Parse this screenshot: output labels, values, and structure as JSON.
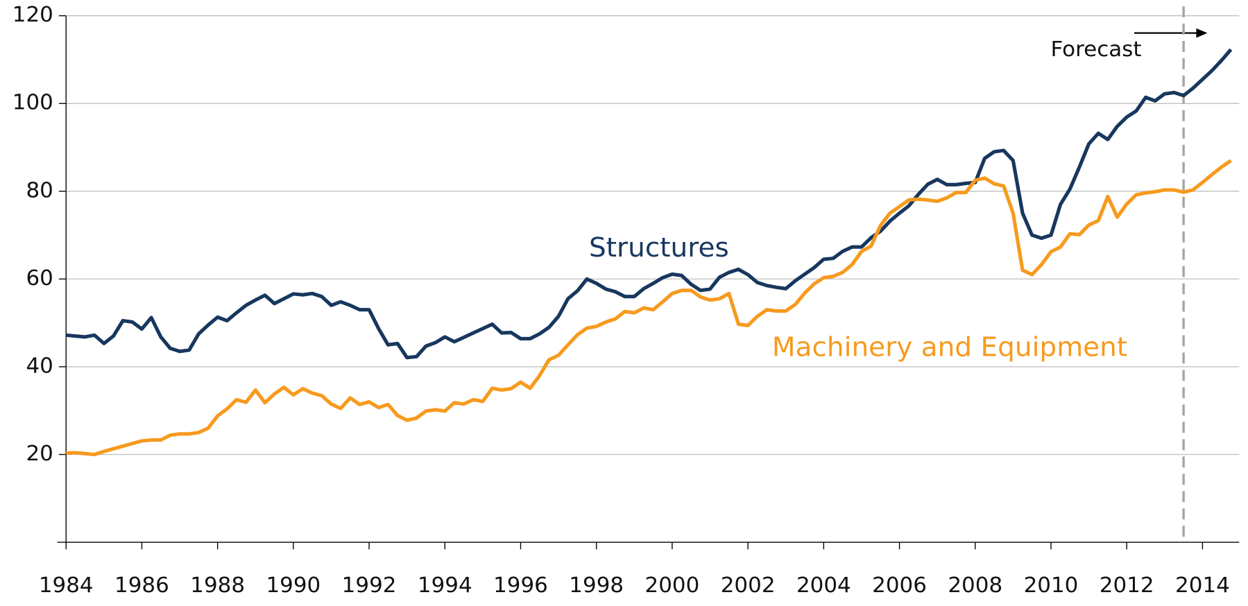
{
  "chart_data": {
    "type": "line",
    "annotations": [
      "Structures",
      "Machinery and Equipment",
      "Forecast"
    ],
    "x": [
      1984,
      1984.25,
      1984.5,
      1984.75,
      1985,
      1985.25,
      1985.5,
      1985.75,
      1986,
      1986.25,
      1986.5,
      1986.75,
      1987,
      1987.25,
      1987.5,
      1987.75,
      1988,
      1988.25,
      1988.5,
      1988.75,
      1989,
      1989.25,
      1989.5,
      1989.75,
      1990,
      1990.25,
      1990.5,
      1990.75,
      1991,
      1991.25,
      1991.5,
      1991.75,
      1992,
      1992.25,
      1992.5,
      1992.75,
      1993,
      1993.25,
      1993.5,
      1993.75,
      1994,
      1994.25,
      1994.5,
      1994.75,
      1995,
      1995.25,
      1995.5,
      1995.75,
      1996,
      1996.25,
      1996.5,
      1996.75,
      1997,
      1997.25,
      1997.5,
      1997.75,
      1998,
      1998.25,
      1998.5,
      1998.75,
      1999,
      1999.25,
      1999.5,
      1999.75,
      2000,
      2000.25,
      2000.5,
      2000.75,
      2001,
      2001.25,
      2001.5,
      2001.75,
      2002,
      2002.25,
      2002.5,
      2002.75,
      2003,
      2003.25,
      2003.5,
      2003.75,
      2004,
      2004.25,
      2004.5,
      2004.75,
      2005,
      2005.25,
      2005.5,
      2005.75,
      2006,
      2006.25,
      2006.5,
      2006.75,
      2007,
      2007.25,
      2007.5,
      2007.75,
      2008,
      2008.25,
      2008.5,
      2008.75,
      2009,
      2009.25,
      2009.5,
      2009.75,
      2010,
      2010.25,
      2010.5,
      2010.75,
      2011,
      2011.25,
      2011.5,
      2011.75,
      2012,
      2012.25,
      2012.5,
      2012.75,
      2013,
      2013.25,
      2013.5,
      2013.75,
      2014,
      2014.25,
      2014.5,
      2014.75
    ],
    "series": [
      {
        "name": "Structures",
        "color": "#17375e",
        "values": [
          47.2,
          47,
          46.8,
          47.2,
          45.3,
          47,
          50.5,
          50.2,
          48.6,
          51.2,
          46.8,
          44.2,
          43.5,
          43.8,
          47.5,
          49.5,
          51.3,
          50.5,
          52.3,
          54,
          55.2,
          56.3,
          54.4,
          55.5,
          56.6,
          56.4,
          56.7,
          56,
          54,
          54.8,
          54,
          53,
          53,
          48.7,
          45,
          45.3,
          42.1,
          42.3,
          44.7,
          45.5,
          46.8,
          45.7,
          46.7,
          47.7,
          48.7,
          49.7,
          47.7,
          47.8,
          46.4,
          46.4,
          47.5,
          49,
          51.5,
          55.5,
          57.3,
          60,
          59,
          57.7,
          57.1,
          56,
          56,
          57.8,
          59,
          60.3,
          61.1,
          60.8,
          58.8,
          57.4,
          57.7,
          60.4,
          61.5,
          62.2,
          61,
          59.2,
          58.5,
          58.1,
          57.8,
          59.6,
          61.1,
          62.6,
          64.5,
          64.7,
          66.3,
          67.3,
          67.3,
          69.4,
          70.9,
          73.2,
          75,
          76.7,
          79.3,
          81.6,
          82.7,
          81.5,
          81.5,
          81.8,
          82,
          87.5,
          89,
          89.3,
          87,
          75,
          70,
          69.3,
          70,
          77,
          80.5,
          85.5,
          90.8,
          93.2,
          91.8,
          94.8,
          96.9,
          98.3,
          101.4,
          100.6,
          102.2,
          102.5,
          101.8,
          103.5,
          105.5,
          107.5,
          109.8,
          112.3
        ]
      },
      {
        "name": "Machinery and Equipment",
        "color": "#f79a1e",
        "values": [
          20.3,
          20.4,
          20.2,
          20,
          20.7,
          21.3,
          21.9,
          22.5,
          23.1,
          23.3,
          23.3,
          24.4,
          24.7,
          24.7,
          25,
          26,
          28.8,
          30.4,
          32.5,
          31.9,
          34.7,
          31.8,
          33.8,
          35.3,
          33.6,
          35,
          34,
          33.4,
          31.5,
          30.5,
          32.9,
          31.4,
          32,
          30.7,
          31.4,
          28.9,
          27.8,
          28.3,
          29.9,
          30.2,
          29.9,
          31.8,
          31.5,
          32.5,
          32.1,
          35.1,
          34.7,
          35,
          36.5,
          35.1,
          38,
          41.6,
          42.6,
          45,
          47.3,
          48.8,
          49.2,
          50.2,
          50.9,
          52.6,
          52.3,
          53.4,
          53,
          54.8,
          56.7,
          57.4,
          57.4,
          55.9,
          55.2,
          55.5,
          56.7,
          49.7,
          49.4,
          51.5,
          53,
          52.7,
          52.7,
          54.2,
          56.8,
          58.9,
          60.3,
          60.6,
          61.5,
          63.3,
          66.3,
          67.5,
          72.2,
          75,
          76.5,
          78,
          78.2,
          78,
          77.7,
          78.5,
          79.7,
          79.7,
          82.5,
          83,
          81.7,
          81.2,
          75,
          62,
          61,
          63.3,
          66.2,
          67.3,
          70.3,
          70.1,
          72.3,
          73.3,
          78.8,
          74.1,
          77.1,
          79.2,
          79.6,
          79.9,
          80.3,
          80.3,
          79.8,
          80.3,
          82,
          83.8,
          85.5,
          87
        ]
      }
    ],
    "xlim": [
      1984,
      2014.97
    ],
    "xticks": [
      1984,
      1986,
      1988,
      1990,
      1992,
      1994,
      1996,
      1998,
      2000,
      2002,
      2004,
      2006,
      2008,
      2010,
      2012,
      2014
    ],
    "ylim": [
      0,
      120
    ],
    "yticks": [
      20,
      40,
      60,
      80,
      100,
      120
    ],
    "grid": true,
    "vline": 2013.5
  }
}
